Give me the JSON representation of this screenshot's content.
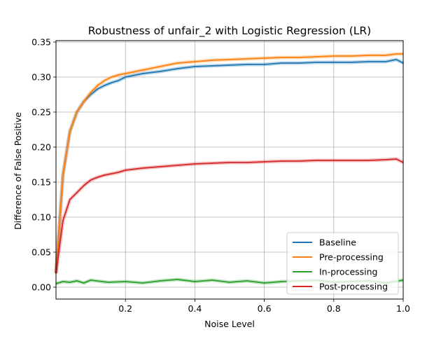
{
  "chart_data": {
    "type": "line",
    "title": "Robustness of unfair_2 with Logistic Regression (LR)",
    "xlabel": "Noise Level",
    "ylabel": "Difference of False Positive",
    "xlim": [
      0.0,
      1.0
    ],
    "ylim": [
      -0.017,
      0.352
    ],
    "xticks": [
      0.2,
      0.4,
      0.6,
      0.8,
      1.0
    ],
    "xtick_labels": [
      "0.2",
      "0.4",
      "0.6",
      "0.8",
      "1.0"
    ],
    "yticks": [
      0.0,
      0.05,
      0.1,
      0.15,
      0.2,
      0.25,
      0.3,
      0.35
    ],
    "ytick_labels": [
      "0.00",
      "0.05",
      "0.10",
      "0.15",
      "0.20",
      "0.25",
      "0.30",
      "0.35"
    ],
    "grid": true,
    "legend_position": "lower-right",
    "series": [
      {
        "name": "Baseline",
        "color": "#1f77b4",
        "x": [
          0.0,
          0.02,
          0.04,
          0.06,
          0.08,
          0.1,
          0.12,
          0.14,
          0.16,
          0.18,
          0.2,
          0.25,
          0.3,
          0.35,
          0.4,
          0.45,
          0.5,
          0.55,
          0.6,
          0.65,
          0.7,
          0.75,
          0.8,
          0.85,
          0.9,
          0.95,
          0.98,
          1.0
        ],
        "values": [
          0.02,
          0.16,
          0.222,
          0.25,
          0.265,
          0.275,
          0.283,
          0.288,
          0.292,
          0.295,
          0.3,
          0.305,
          0.308,
          0.312,
          0.315,
          0.316,
          0.317,
          0.318,
          0.318,
          0.32,
          0.32,
          0.321,
          0.321,
          0.321,
          0.322,
          0.322,
          0.325,
          0.32
        ]
      },
      {
        "name": "Pre-processing",
        "color": "#ff7f0e",
        "x": [
          0.0,
          0.02,
          0.04,
          0.06,
          0.08,
          0.1,
          0.12,
          0.14,
          0.16,
          0.18,
          0.2,
          0.25,
          0.3,
          0.35,
          0.4,
          0.45,
          0.5,
          0.55,
          0.6,
          0.65,
          0.7,
          0.75,
          0.8,
          0.85,
          0.9,
          0.95,
          0.98,
          1.0
        ],
        "values": [
          0.02,
          0.16,
          0.222,
          0.25,
          0.265,
          0.278,
          0.288,
          0.295,
          0.3,
          0.303,
          0.305,
          0.31,
          0.315,
          0.32,
          0.322,
          0.324,
          0.325,
          0.326,
          0.327,
          0.328,
          0.328,
          0.329,
          0.33,
          0.33,
          0.331,
          0.331,
          0.333,
          0.333
        ]
      },
      {
        "name": "In-processing",
        "color": "#2ca02c",
        "x": [
          0.0,
          0.02,
          0.04,
          0.06,
          0.08,
          0.1,
          0.15,
          0.2,
          0.25,
          0.3,
          0.35,
          0.4,
          0.45,
          0.5,
          0.55,
          0.6,
          0.65,
          0.7,
          0.75,
          0.8,
          0.85,
          0.9,
          0.95,
          1.0
        ],
        "values": [
          0.005,
          0.008,
          0.007,
          0.009,
          0.006,
          0.01,
          0.007,
          0.008,
          0.006,
          0.009,
          0.011,
          0.008,
          0.01,
          0.007,
          0.009,
          0.006,
          0.008,
          0.009,
          0.01,
          0.007,
          0.008,
          0.009,
          0.006,
          0.01
        ]
      },
      {
        "name": "Post-processing",
        "color": "#d62728",
        "x": [
          0.0,
          0.02,
          0.04,
          0.06,
          0.08,
          0.1,
          0.12,
          0.14,
          0.16,
          0.18,
          0.2,
          0.25,
          0.3,
          0.35,
          0.4,
          0.45,
          0.5,
          0.55,
          0.6,
          0.65,
          0.7,
          0.75,
          0.8,
          0.85,
          0.9,
          0.95,
          0.98,
          1.0
        ],
        "values": [
          0.02,
          0.095,
          0.125,
          0.135,
          0.145,
          0.153,
          0.157,
          0.16,
          0.162,
          0.164,
          0.167,
          0.17,
          0.172,
          0.174,
          0.176,
          0.177,
          0.178,
          0.178,
          0.179,
          0.18,
          0.18,
          0.181,
          0.181,
          0.181,
          0.181,
          0.182,
          0.183,
          0.178
        ]
      }
    ]
  }
}
